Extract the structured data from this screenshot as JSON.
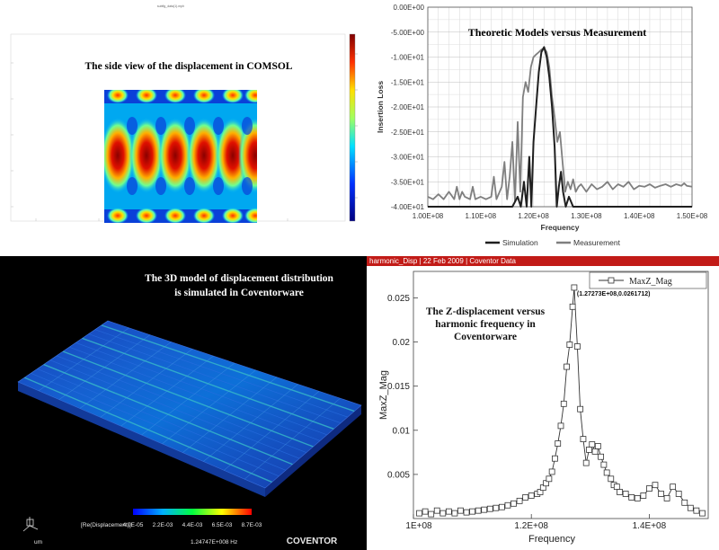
{
  "comsol": {
    "window_title": "subfig_data(1).mph",
    "annotation": "The side view of the displacement in COMSOL"
  },
  "coventor": {
    "annotation_line1": "The 3D model of displacement distribution",
    "annotation_line2": "is simulated in Coventorware",
    "legend_label": "[Re(Displacement)]:",
    "legend_unit": "um",
    "legend_ticks": [
      "4.0E-05",
      "2.2E-03",
      "4.4E-03",
      "6.5E-03",
      "8.7E-03"
    ],
    "frequency_readout": "1.24747E+008 Hz",
    "logo": "COVENTOR"
  },
  "harmonic_header": {
    "segments": [
      "harmonic_Disp",
      "22 Feb 2009",
      "Coventor Data"
    ]
  },
  "chart_data": [
    {
      "type": "line",
      "title": "Theoretic Models versus Measurement",
      "xlabel": "Frequency",
      "ylabel": "Insertion Loss",
      "xlim": [
        100000000,
        150000000
      ],
      "ylim": [
        -40,
        0
      ],
      "x_tick_labels": [
        "1.00E+08",
        "1.10E+08",
        "1.20E+08",
        "1.30E+08",
        "1.40E+08",
        "1.50E+08"
      ],
      "y_tick_labels": [
        "0.00E+00",
        "-5.00E+00",
        "-1.00E+01",
        "-1.50E+01",
        "-2.00E+01",
        "-2.50E+01",
        "-3.00E+01",
        "-3.50E+01",
        "-4.00E+01"
      ],
      "grid": true,
      "legend_position": "bottom",
      "series": [
        {
          "name": "Simulation",
          "color": "#1f1f1f",
          "x": [
            100000000,
            115000000,
            116000000,
            117000000,
            117600000,
            118200000,
            118700000,
            119200000,
            119600000,
            120000000,
            120500000,
            121000000,
            121500000,
            122000000,
            122500000,
            123000000,
            123500000,
            124000000,
            124400000,
            124800000,
            125200000,
            125600000,
            126100000,
            126700000,
            127500000,
            128500000,
            150000000
          ],
          "y": [
            -40,
            -40,
            -40,
            -38,
            -40,
            -35,
            -40,
            -30,
            -40,
            -27,
            -20,
            -13,
            -9,
            -8,
            -10,
            -14,
            -20,
            -28,
            -40,
            -36,
            -33,
            -37,
            -40,
            -38,
            -40,
            -40,
            -40
          ]
        },
        {
          "name": "Measurement",
          "color": "#7f7f7f",
          "x": [
            100000000,
            101000000,
            102000000,
            103000000,
            104000000,
            105000000,
            105500000,
            106000000,
            106500000,
            107000000,
            108000000,
            108500000,
            109000000,
            110000000,
            111000000,
            112000000,
            112500000,
            113000000,
            114000000,
            114500000,
            115000000,
            115500000,
            116000000,
            116500000,
            117000000,
            117500000,
            118000000,
            118500000,
            119000000,
            119500000,
            120000000,
            120500000,
            121000000,
            121500000,
            122000000,
            122500000,
            123000000,
            123500000,
            124000000,
            124500000,
            125000000,
            125500000,
            126000000,
            126500000,
            127000000,
            127500000,
            128000000,
            128500000,
            129000000,
            130000000,
            131000000,
            132000000,
            133000000,
            134000000,
            135000000,
            136000000,
            137000000,
            138000000,
            139000000,
            140000000,
            141000000,
            142000000,
            143000000,
            144000000,
            145000000,
            146000000,
            147000000,
            148000000,
            148500000,
            149000000,
            150000000
          ],
          "y": [
            -38,
            -38.5,
            -37.5,
            -38.5,
            -37,
            -38.5,
            -36,
            -38.5,
            -37,
            -38,
            -38.5,
            -36,
            -38.5,
            -38,
            -38.5,
            -38,
            -34,
            -38.5,
            -36,
            -31,
            -38.5,
            -34,
            -27,
            -39,
            -23,
            -37,
            -18,
            -15,
            -17,
            -12,
            -10,
            -9.5,
            -9,
            -8.5,
            -8.2,
            -9,
            -12,
            -18,
            -22,
            -27,
            -25,
            -31,
            -37,
            -35,
            -36.5,
            -34.5,
            -37,
            -36,
            -35.5,
            -37,
            -35.5,
            -36.5,
            -36,
            -35,
            -36.5,
            -35.5,
            -36,
            -35,
            -36.5,
            -35.8,
            -36,
            -35.5,
            -36.2,
            -35.8,
            -35.5,
            -36,
            -35.5,
            -35.8,
            -35.3,
            -35.8,
            -36
          ]
        }
      ]
    },
    {
      "type": "line",
      "title": "The Z-displacement versus harmonic frequency in Coventorware",
      "xlabel": "Frequency",
      "ylabel": "MaxZ_Mag",
      "xlim": [
        100000000,
        150000000
      ],
      "ylim": [
        0,
        0.028
      ],
      "x_tick_labels": [
        "1E+08",
        "1.2E+08",
        "1.4E+08"
      ],
      "y_tick_labels": [
        "0.005",
        "0.01",
        "0.015",
        "0.02",
        "0.025"
      ],
      "grid": false,
      "legend_position": "top-right",
      "peak_annotation": "(1.27273E+08,0.0261712)",
      "series": [
        {
          "name": "MaxZ_Mag",
          "color": "#333333",
          "marker": "square",
          "x": [
            101000000,
            102000000,
            103000000,
            104000000,
            105000000,
            106000000,
            107000000,
            108000000,
            109000000,
            110000000,
            111000000,
            112000000,
            113000000,
            114000000,
            115000000,
            116000000,
            117000000,
            118000000,
            119000000,
            120000000,
            121000000,
            121500000,
            122000000,
            122500000,
            123000000,
            123500000,
            124000000,
            124500000,
            125000000,
            125500000,
            126000000,
            126500000,
            127000000,
            127273000,
            127800000,
            128300000,
            128800000,
            129300000,
            129800000,
            130300000,
            130800000,
            131300000,
            131800000,
            132300000,
            132800000,
            133500000,
            134000000,
            134500000,
            135000000,
            136000000,
            137000000,
            138000000,
            139000000,
            140000000,
            141000000,
            142000000,
            143000000,
            144000000,
            145000000,
            146000000,
            147000000,
            148000000,
            149000000
          ],
          "y": [
            0.0006,
            0.0008,
            0.0005,
            0.0009,
            0.0006,
            0.0008,
            0.0006,
            0.0009,
            0.0007,
            0.0008,
            0.0009,
            0.001,
            0.0011,
            0.0012,
            0.0013,
            0.0015,
            0.0017,
            0.002,
            0.0024,
            0.0026,
            0.0028,
            0.003,
            0.0035,
            0.004,
            0.0045,
            0.0053,
            0.0068,
            0.0085,
            0.0105,
            0.013,
            0.0172,
            0.0197,
            0.024,
            0.0261712,
            0.0195,
            0.0124,
            0.009,
            0.0063,
            0.0078,
            0.0084,
            0.0076,
            0.0082,
            0.007,
            0.0061,
            0.0052,
            0.0045,
            0.0038,
            0.0036,
            0.003,
            0.0028,
            0.0024,
            0.0023,
            0.0026,
            0.0034,
            0.0038,
            0.0028,
            0.0023,
            0.0036,
            0.0028,
            0.0018,
            0.0012,
            0.0009,
            0.0006
          ]
        }
      ]
    }
  ]
}
